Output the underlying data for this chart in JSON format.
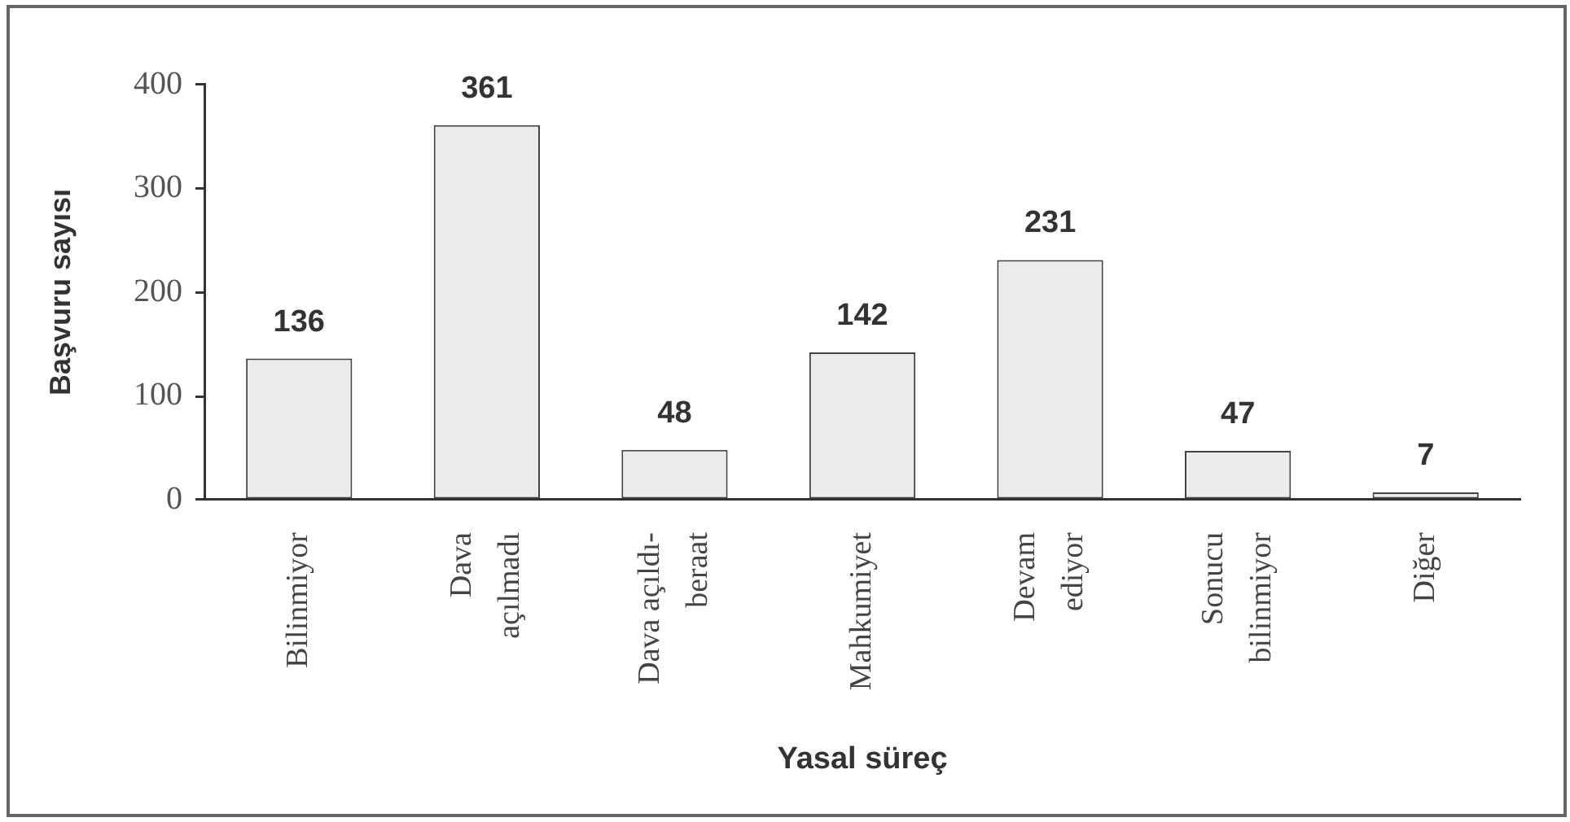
{
  "chart_data": {
    "type": "bar",
    "xlabel": "Yasal süreç",
    "ylabel": "Başvuru sayısı",
    "categories": [
      "Bilinmiyor",
      "Dava açılmadı",
      "Dava açıldı-beraat",
      "Mahkumiyet",
      "Devam ediyor",
      "Sonucu bilinmiyor",
      "Diğer"
    ],
    "values": [
      136,
      361,
      48,
      142,
      231,
      47,
      7
    ],
    "color": "#ebebeb",
    "ylim": [
      0,
      400
    ],
    "yticks": [
      0,
      100,
      200,
      300,
      400
    ],
    "data_labels": true
  }
}
